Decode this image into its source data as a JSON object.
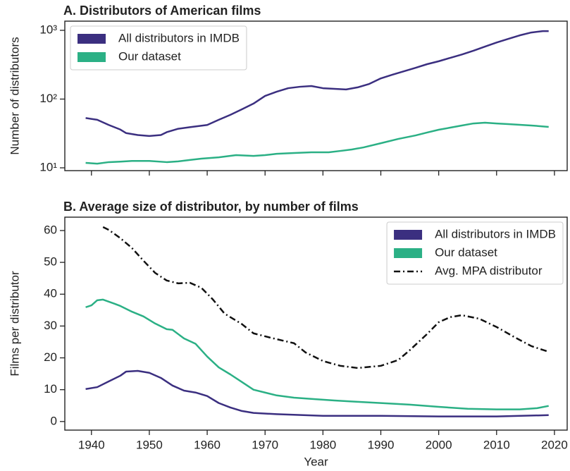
{
  "chart_data": [
    {
      "type": "line",
      "title": "A. Distributors of American films",
      "ylabel": "Number of distributors",
      "xlim": [
        1935.4,
        2022.2
      ],
      "xticks": [
        1940,
        1950,
        1960,
        1970,
        1980,
        1990,
        2000,
        2010,
        2020
      ],
      "xtick_labels": false,
      "ylim": [
        9.1,
        1360
      ],
      "log_y": true,
      "yticks": [
        {
          "value": 10,
          "label": "10¹"
        },
        {
          "value": 100,
          "label": "10²"
        },
        {
          "value": 1000,
          "label": "10³"
        }
      ],
      "legend": "upper left",
      "series": [
        {
          "name": "All distributors in IMDB",
          "color": "#3b2f80",
          "x": [
            1939,
            1941,
            1943,
            1945,
            1946,
            1948,
            1950,
            1952,
            1953,
            1955,
            1957,
            1960,
            1962,
            1964,
            1966,
            1968,
            1970,
            1972,
            1974,
            1976,
            1978,
            1980,
            1982,
            1984,
            1986,
            1988,
            1990,
            1992,
            1994,
            1996,
            1998,
            2000,
            2002,
            2004,
            2006,
            2008,
            2010,
            2012,
            2014,
            2016,
            2018,
            2019
          ],
          "values": [
            53,
            50,
            42,
            36,
            32,
            30,
            29,
            30,
            33,
            37,
            39,
            42,
            50,
            59,
            71,
            86,
            111,
            128,
            144,
            151,
            155,
            144,
            141,
            138,
            148,
            166,
            200,
            226,
            254,
            285,
            322,
            355,
            398,
            445,
            505,
            580,
            665,
            750,
            845,
            930,
            975,
            975
          ]
        },
        {
          "name": "Our dataset",
          "color": "#2bb085",
          "x": [
            1939,
            1941,
            1943,
            1945,
            1947,
            1950,
            1953,
            1955,
            1957,
            1959,
            1962,
            1965,
            1968,
            1970,
            1972,
            1975,
            1978,
            1981,
            1983,
            1985,
            1987,
            1990,
            1993,
            1996,
            1998,
            2000,
            2002,
            2004,
            2006,
            2008,
            2010,
            2012,
            2014,
            2016,
            2019
          ],
          "values": [
            11.8,
            11.5,
            12.1,
            12.3,
            12.6,
            12.6,
            12.1,
            12.4,
            13,
            13.6,
            14.2,
            15.3,
            14.9,
            15.3,
            16,
            16.4,
            16.8,
            16.8,
            17.6,
            18.5,
            19.8,
            22.8,
            26.3,
            29.6,
            32.6,
            35.8,
            38.4,
            41.3,
            44.2,
            45.3,
            44.2,
            43.2,
            42.2,
            41.3,
            39.4
          ]
        }
      ]
    },
    {
      "type": "line",
      "title": "B. Average size of distributor, by number of films",
      "xlabel": "Year",
      "ylabel": "Films per distributor",
      "xlim": [
        1935.4,
        2022.2
      ],
      "xticks": [
        1940,
        1950,
        1960,
        1970,
        1980,
        1990,
        2000,
        2010,
        2020
      ],
      "ylim": [
        -2.7,
        64.2
      ],
      "yticks": [
        0,
        10,
        20,
        30,
        40,
        50,
        60
      ],
      "legend": "upper right",
      "series": [
        {
          "name": "All distributors in IMDB",
          "color": "#3b2f80",
          "x": [
            1939,
            1941,
            1943,
            1945,
            1946,
            1948,
            1950,
            1952,
            1954,
            1956,
            1958,
            1960,
            1962,
            1964,
            1966,
            1968,
            1972,
            1980,
            1990,
            2000,
            2010,
            2019
          ],
          "values": [
            10.2,
            10.8,
            12.6,
            14.4,
            15.7,
            15.9,
            15.3,
            13.7,
            11.3,
            9.7,
            9.1,
            8,
            5.8,
            4.4,
            3.3,
            2.7,
            2.3,
            1.8,
            1.8,
            1.6,
            1.6,
            2.0
          ]
        },
        {
          "name": "Our dataset",
          "color": "#2bb085",
          "x": [
            1939,
            1940,
            1941,
            1942,
            1944,
            1945,
            1947,
            1949,
            1951,
            1953,
            1954,
            1956,
            1958,
            1960,
            1962,
            1964,
            1966,
            1968,
            1970,
            1972,
            1975,
            1978,
            1982,
            1986,
            1990,
            1995,
            2000,
            2005,
            2010,
            2014,
            2017,
            2019
          ],
          "values": [
            35.9,
            36.5,
            38.1,
            38.3,
            37,
            36.3,
            34.5,
            33,
            30.8,
            29,
            28.8,
            26.1,
            24.4,
            20.4,
            17,
            14.8,
            12.4,
            10,
            9.1,
            8.2,
            7.5,
            7.1,
            6.6,
            6.2,
            5.8,
            5.3,
            4.6,
            4,
            3.8,
            3.8,
            4.2,
            4.9
          ]
        },
        {
          "name": "Avg. MPA distributor",
          "color": "#111111",
          "dash": "dashdot",
          "legend_symbol": "line",
          "x": [
            1942,
            1943,
            1945,
            1947,
            1949,
            1951,
            1953,
            1955,
            1957,
            1959,
            1961,
            1963,
            1966,
            1968,
            1971,
            1975,
            1977,
            1980,
            1983,
            1986,
            1990,
            1993,
            1995,
            1998,
            2000,
            2002,
            2004,
            2007,
            2010,
            2013,
            2016,
            2019
          ],
          "values": [
            61.1,
            60.2,
            57.6,
            54.5,
            50.5,
            46.7,
            44.3,
            43.4,
            43.6,
            42,
            38.3,
            33.9,
            30.6,
            27.7,
            26.3,
            24.6,
            21.7,
            19,
            17.5,
            16.8,
            17.5,
            19.3,
            22.4,
            27.5,
            31.2,
            32.8,
            33.4,
            32.3,
            29.7,
            26.6,
            23.7,
            21.9
          ]
        }
      ]
    }
  ]
}
